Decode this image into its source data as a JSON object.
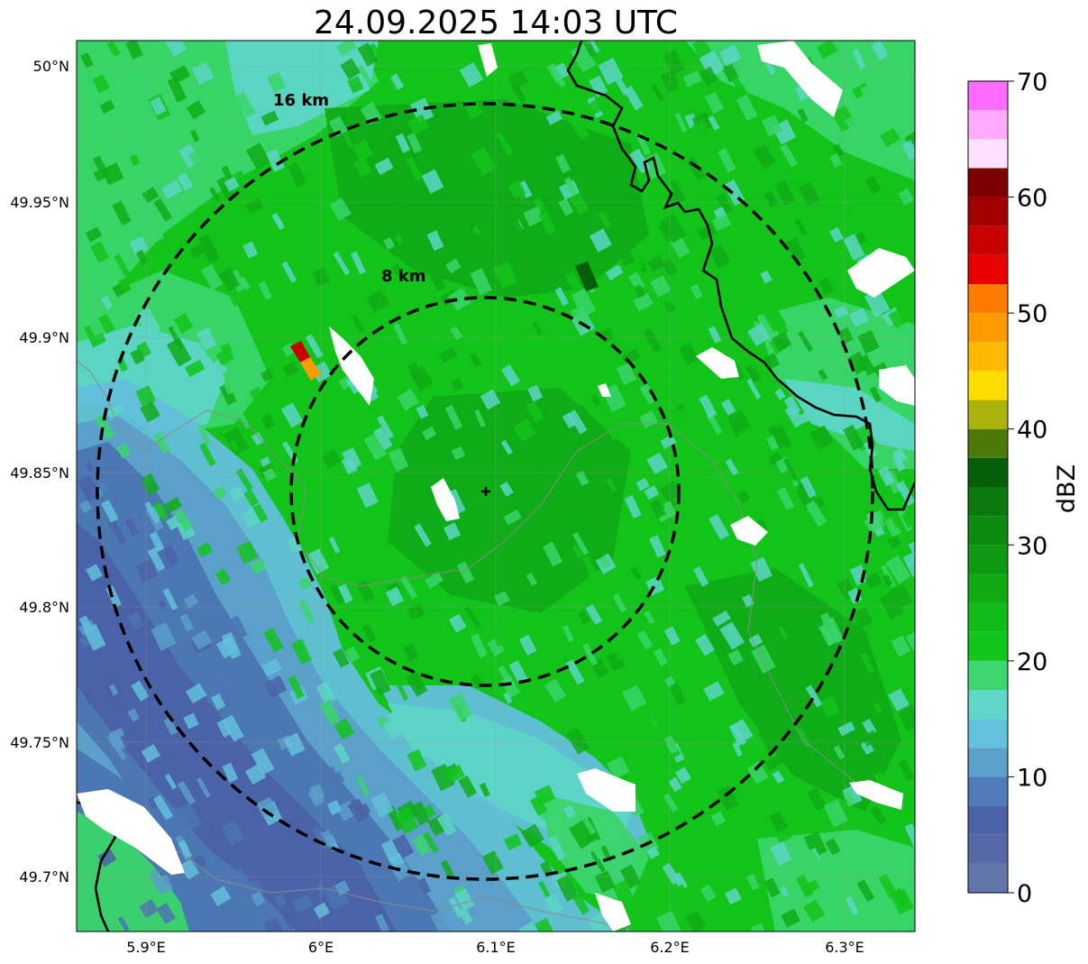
{
  "title": "24.09.2025 14:03 UTC",
  "map": {
    "region_center": {
      "lat": 49.8425,
      "lon": 6.0955
    },
    "x_ticks": [
      "5.9°E",
      "6°E",
      "6.1°E",
      "6.2°E",
      "6.3°E"
    ],
    "y_ticks": [
      "50°N",
      "49.95°N",
      "49.9°N",
      "49.85°N",
      "49.8°N",
      "49.75°N",
      "49.7°N"
    ],
    "rings": [
      {
        "label": "8 km",
        "radius_km": 8
      },
      {
        "label": "16 km",
        "radius_km": 16
      }
    ],
    "center_marker": "+",
    "base_colors": {
      "rain_green": "#12c41a",
      "dark_green": "#0fab17",
      "light_green": "#3ad56a",
      "cyan": "#5cd5c6",
      "light_blue": "#63bfdb",
      "mid_blue": "#5a9ec9",
      "dark_blue": "#4b76b1",
      "deep_blue": "#4a61a7",
      "border_gray": "#8a8a8a",
      "border_black": "#000000"
    }
  },
  "colorbar": {
    "label": "dBZ",
    "tick_values": [
      "0",
      "10",
      "20",
      "30",
      "40",
      "50",
      "60",
      "70"
    ],
    "min": 0,
    "max": 70,
    "step": 2.5,
    "colors": [
      "#6275a9",
      "#5668a5",
      "#4a63a7",
      "#4f7cb8",
      "#5aa1cb",
      "#63c1dc",
      "#5ed7c8",
      "#3dd56e",
      "#11c61a",
      "#12bc18",
      "#10ab14",
      "#0d9a12",
      "#0b8a10",
      "#0a7a0e",
      "#075e0a",
      "#4b7a0a",
      "#acb20c",
      "#ffdc00",
      "#ffb900",
      "#ff9a00",
      "#ff7c00",
      "#e60000",
      "#c80000",
      "#a00000",
      "#7c0000",
      "#ffe0ff",
      "#ffaaff",
      "#ff6bff",
      "#ef30ef"
    ]
  }
}
